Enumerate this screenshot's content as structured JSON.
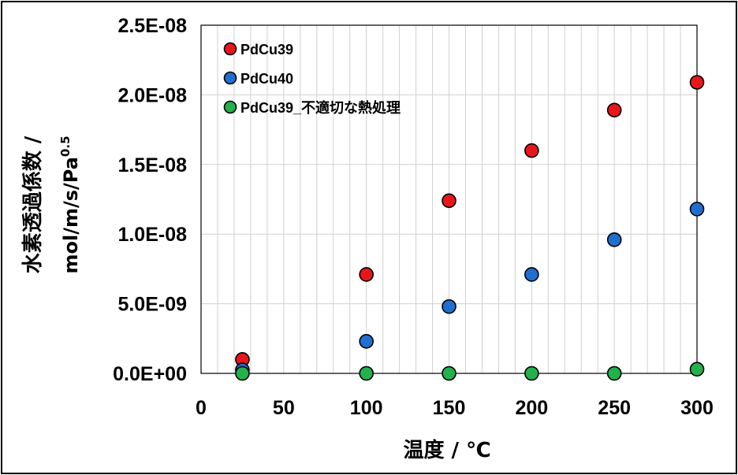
{
  "chart_data": {
    "type": "scatter",
    "xlabel": "温度 / ℃",
    "ylabel_line1": "水素透過係数 /",
    "ylabel_line2_base": "mol/m/s/Pa",
    "ylabel_line2_sup": "0.5",
    "xlim": [
      0,
      300
    ],
    "ylim": [
      0,
      2.5e-08
    ],
    "x_ticks": [
      {
        "value": 0,
        "label": "0"
      },
      {
        "value": 50,
        "label": "50"
      },
      {
        "value": 100,
        "label": "100"
      },
      {
        "value": 150,
        "label": "150"
      },
      {
        "value": 200,
        "label": "200"
      },
      {
        "value": 250,
        "label": "250"
      },
      {
        "value": 300,
        "label": "300"
      }
    ],
    "y_ticks": [
      {
        "value": 0,
        "label": "0.0E+00"
      },
      {
        "value": 5e-09,
        "label": "5.0E-09"
      },
      {
        "value": 1e-08,
        "label": "1.0E-08"
      },
      {
        "value": 1.5e-08,
        "label": "1.5E-08"
      },
      {
        "value": 2e-08,
        "label": "2.0E-08"
      },
      {
        "value": 2.5e-08,
        "label": "2.5E-08"
      }
    ],
    "grid": true,
    "legend_position": "top-left",
    "series": [
      {
        "name": "PdCu39",
        "color": "#e8161b",
        "points": [
          [
            25,
            1e-09
          ],
          [
            100,
            7.1e-09
          ],
          [
            150,
            1.24e-08
          ],
          [
            200,
            1.6e-08
          ],
          [
            250,
            1.89e-08
          ],
          [
            300,
            2.09e-08
          ]
        ]
      },
      {
        "name": "PdCu40",
        "color": "#1f6fd1",
        "points": [
          [
            25,
            2.5e-10
          ],
          [
            100,
            2.3e-09
          ],
          [
            150,
            4.8e-09
          ],
          [
            200,
            7.1e-09
          ],
          [
            250,
            9.6e-09
          ],
          [
            300,
            1.18e-08
          ]
        ]
      },
      {
        "name": "PdCu39_不適切な熱処理",
        "color": "#22b14c",
        "points": [
          [
            25,
            0
          ],
          [
            100,
            0
          ],
          [
            150,
            0
          ],
          [
            200,
            0
          ],
          [
            250,
            0
          ],
          [
            300,
            3e-10
          ]
        ]
      }
    ]
  }
}
